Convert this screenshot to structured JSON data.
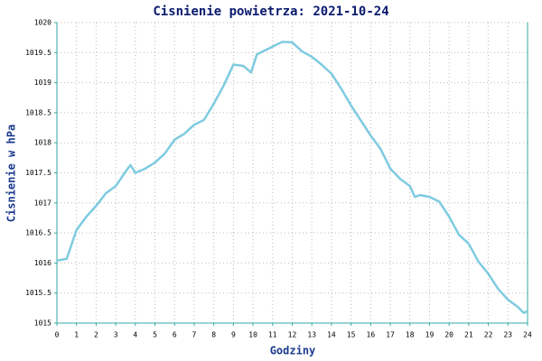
{
  "chart_data": {
    "type": "line",
    "title": "Cisnienie powietrza: 2021-10-24",
    "x_label": "Godziny",
    "y_label": "Cisnienie w hPa",
    "xlim": [
      0,
      24
    ],
    "ylim": [
      1015,
      1020
    ],
    "xticks": [
      0,
      1,
      2,
      3,
      4,
      5,
      6,
      7,
      8,
      9,
      10,
      11,
      12,
      13,
      14,
      15,
      16,
      17,
      18,
      19,
      20,
      21,
      22,
      23,
      24
    ],
    "yticks": [
      1015,
      1015.5,
      1016,
      1016.5,
      1017,
      1017.5,
      1018,
      1018.5,
      1019,
      1019.5,
      1020
    ],
    "grid": true,
    "series": [
      {
        "color": "#7ecbe0",
        "x": [
          0,
          0.5,
          1,
          1.5,
          2,
          2.5,
          3,
          3.5,
          3.75,
          4,
          4.5,
          5,
          5.5,
          6,
          6.5,
          7,
          7.5,
          8,
          8.5,
          9,
          9.5,
          9.9,
          10.2,
          10.5,
          11,
          11.5,
          12,
          12.5,
          13,
          13.5,
          14,
          14.5,
          15,
          15.5,
          16,
          16.5,
          17,
          17.5,
          18,
          18.25,
          18.5,
          19,
          19.5,
          20,
          20.5,
          21,
          21.5,
          22,
          22.5,
          23,
          23.5,
          23.8,
          24
        ],
        "values": [
          1016.04,
          1016.07,
          1016.55,
          1016.77,
          1016.95,
          1017.16,
          1017.28,
          1017.52,
          1017.63,
          1017.5,
          1017.57,
          1017.67,
          1017.82,
          1018.05,
          1018.15,
          1018.3,
          1018.38,
          1018.65,
          1018.95,
          1019.3,
          1019.28,
          1019.17,
          1019.47,
          1019.52,
          1019.6,
          1019.68,
          1019.67,
          1019.52,
          1019.43,
          1019.3,
          1019.15,
          1018.9,
          1018.62,
          1018.37,
          1018.12,
          1017.9,
          1017.57,
          1017.4,
          1017.28,
          1017.1,
          1017.13,
          1017.1,
          1017.02,
          1016.77,
          1016.47,
          1016.32,
          1016.02,
          1015.82,
          1015.57,
          1015.39,
          1015.27,
          1015.17,
          1015.2
        ]
      }
    ]
  }
}
